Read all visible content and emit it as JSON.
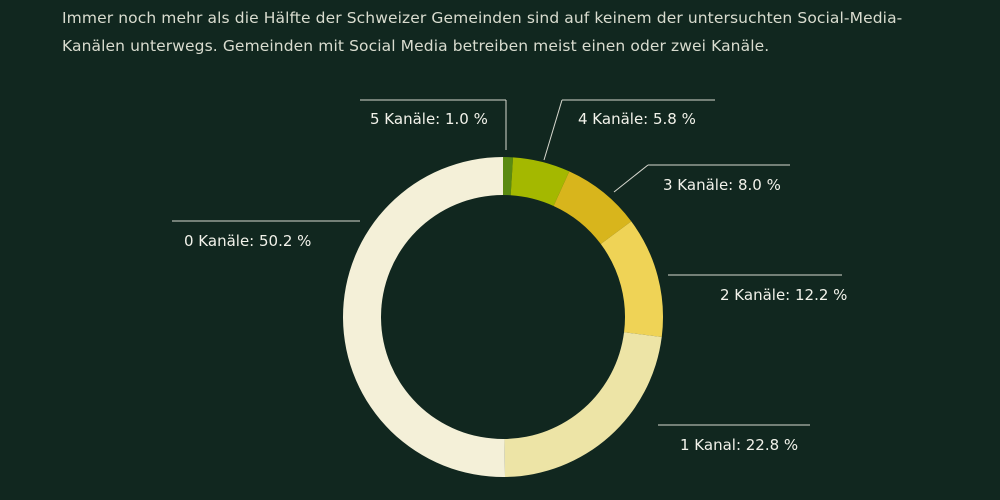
{
  "subtitle": "Immer noch mehr als die Hälfte der Schweizer Gemeinden sind auf keinem der untersuchten Social-Media-Kanälen unterwegs. Gemeinden mit Social Media betreiben meist einen oder zwei Kanäle.",
  "chart_data": {
    "type": "pie",
    "donut": true,
    "start": "top",
    "direction": "clockwise",
    "slices": [
      {
        "name": "5 Kanäle",
        "value": 1.0,
        "label": "5 Kanäle: 1.0 %",
        "color": "#5a8a12"
      },
      {
        "name": "4 Kanäle",
        "value": 5.8,
        "label": "4 Kanäle: 5.8 %",
        "color": "#a4b800"
      },
      {
        "name": "3 Kanäle",
        "value": 8.0,
        "label": "3 Kanäle: 8.0 %",
        "color": "#d8b51c"
      },
      {
        "name": "2 Kanäle",
        "value": 12.2,
        "label": "2 Kanäle: 12.2 %",
        "color": "#efd356"
      },
      {
        "name": "1 Kanal",
        "value": 22.8,
        "label": "1 Kanal: 22.8 %",
        "color": "#ede4a6"
      },
      {
        "name": "0 Kanäle",
        "value": 50.2,
        "label": "0 Kanäle: 50.2 %",
        "color": "#f4f0d8"
      }
    ]
  }
}
